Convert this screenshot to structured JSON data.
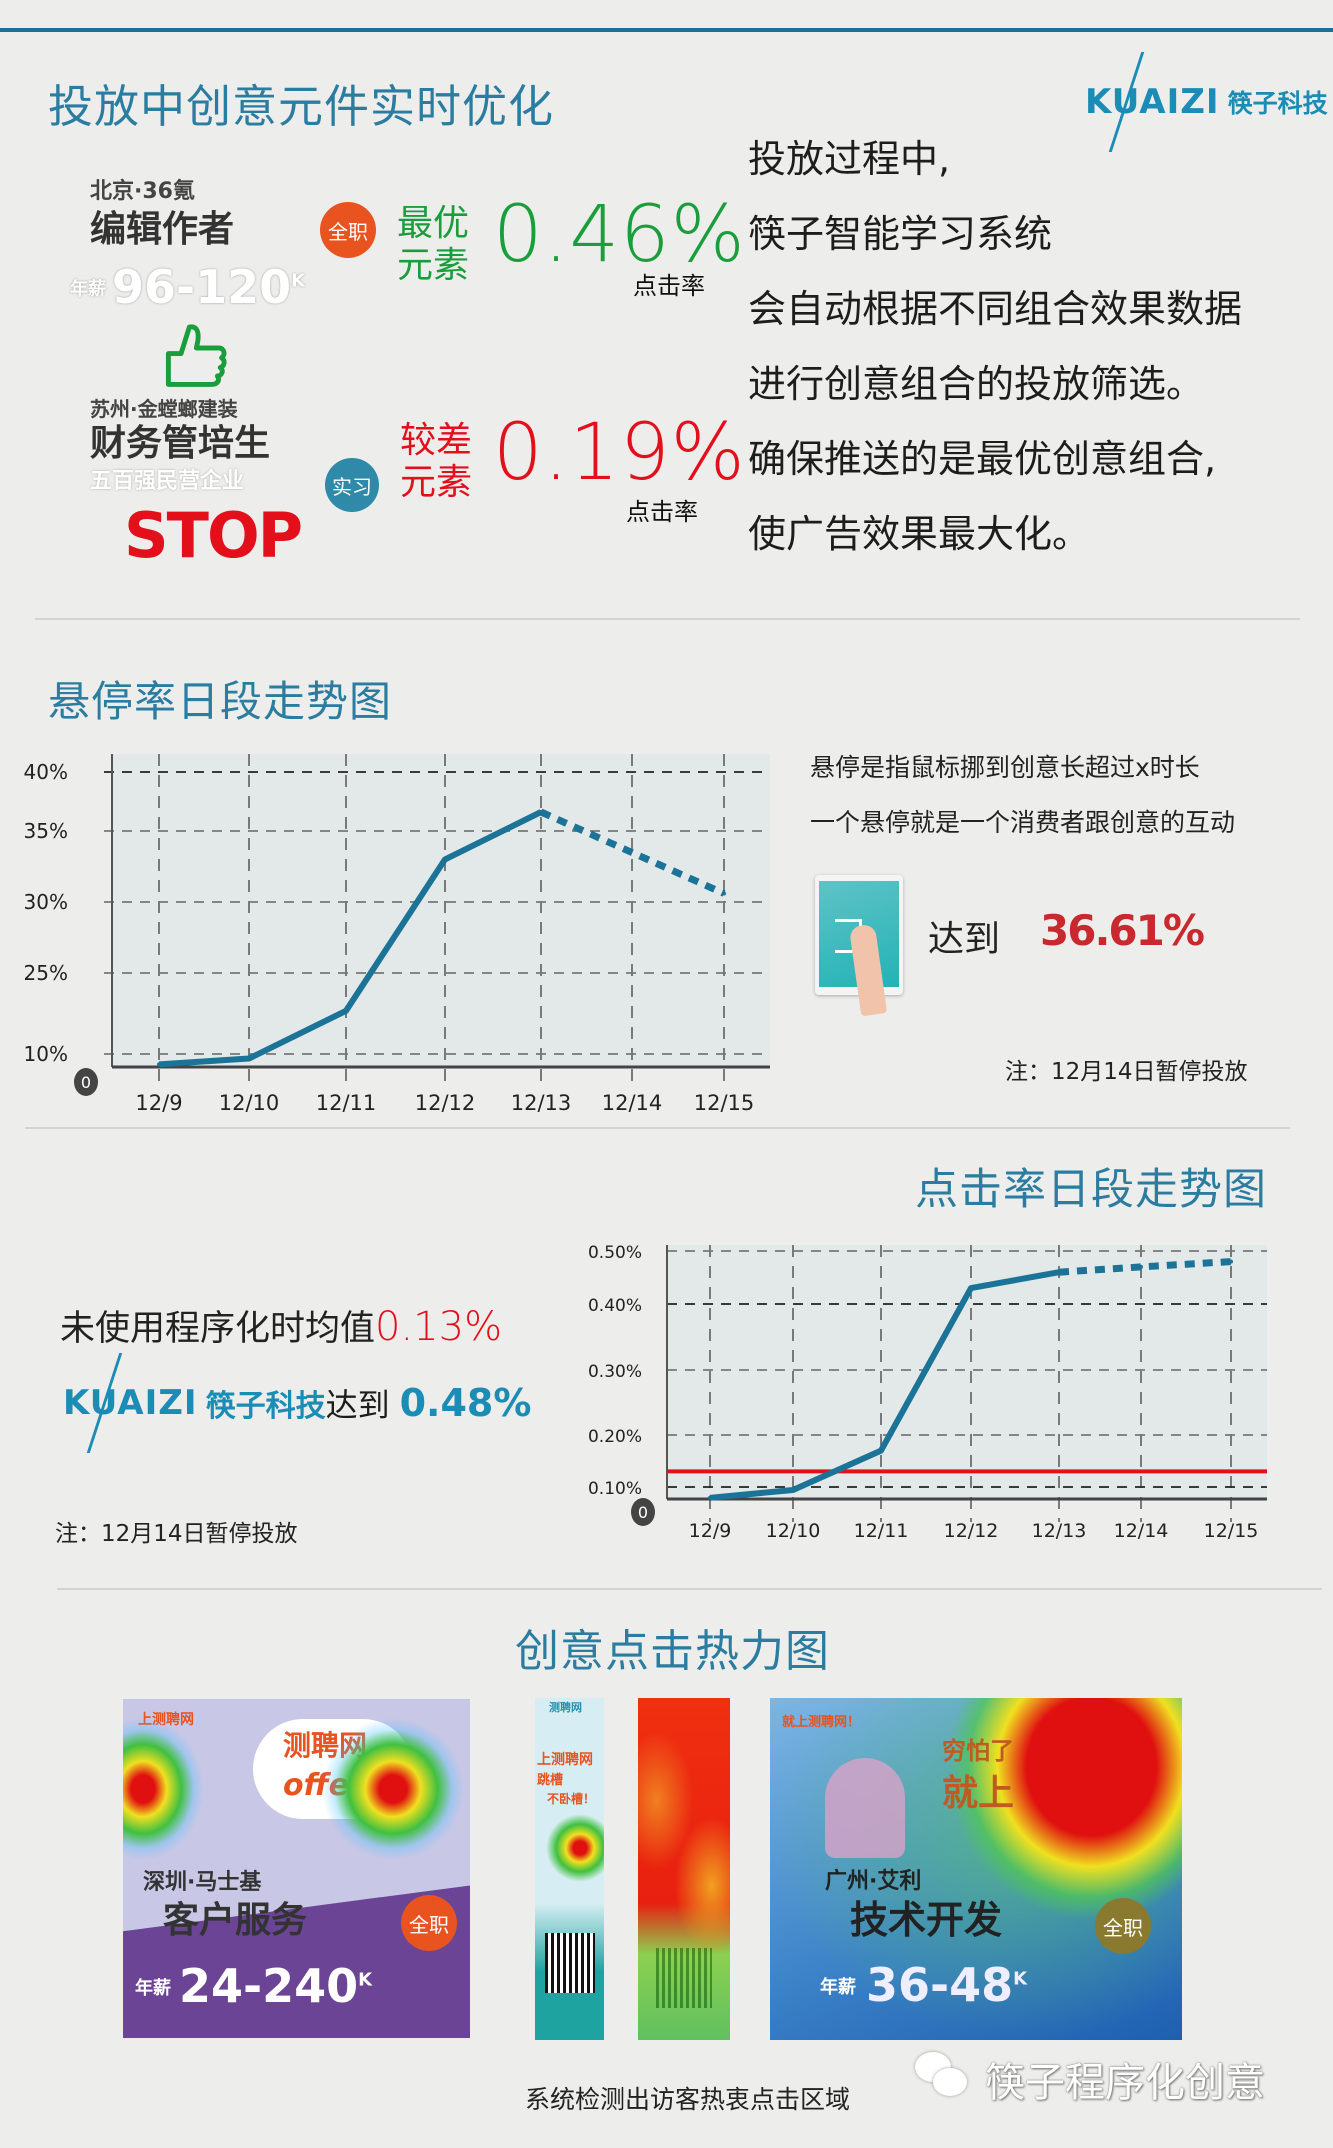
{
  "section1": {
    "title": "投放中创意元件实时优化",
    "logo": {
      "latin": "KUAIZI",
      "cn": "筷子科技"
    },
    "paragraph": [
      "投放过程中,",
      "筷子智能学习系统",
      "会自动根据不同组合效果数据",
      "进行创意组合的投放筛选。",
      "确保推送的是最优创意组合,",
      "使广告效果最大化。"
    ],
    "best": {
      "label": [
        "最优",
        "元素"
      ],
      "value": "0.46%",
      "sub": "点击率",
      "color": "#1a9e3c"
    },
    "worse": {
      "label": [
        "较差",
        "元素"
      ],
      "value": "0.19%",
      "sub": "点击率",
      "color": "#e3101c"
    },
    "ad_good": {
      "location": "北京·36氪",
      "job": "编辑作者",
      "salary_prefix": "年薪",
      "salary": "96-120",
      "unit": "K",
      "badge": "全职",
      "icon": "thumbs-up-icon"
    },
    "ad_bad": {
      "location": "苏州·金螳螂建装",
      "job": "财务管培生",
      "faint": "五百强民营企业",
      "badge": "实习",
      "stop": "STOP"
    }
  },
  "chart_hover": {
    "title": "悬停率日段走势图",
    "desc": [
      "悬停是指鼠标挪到创意长超过x时长",
      "一个悬停就是一个消费者跟创意的互动"
    ],
    "reach_label": "达到",
    "reach_value": "36.61%",
    "note": "注：12月14日暂停投放",
    "icon": "tablet-touch-icon"
  },
  "chart_click": {
    "title": "点击率日段走势图",
    "baseline_text": "未使用程序化时均值",
    "baseline_value": "0.13%",
    "logo": {
      "latin": "KUAIZI",
      "cn": "筷子科技"
    },
    "reach_label": "达到",
    "reach_value": "0.48%",
    "note": "注：12月14日暂停投放"
  },
  "chart_data": [
    {
      "type": "line",
      "title": "悬停率日段走势图",
      "categories": [
        "12/9",
        "12/10",
        "12/11",
        "12/12",
        "12/13",
        "12/14",
        "12/15"
      ],
      "yticks": [
        "0",
        "10%",
        "25%",
        "30%",
        "35%",
        "40%"
      ],
      "ytick_values": [
        0,
        10,
        25,
        30,
        35,
        40
      ],
      "series": [
        {
          "values": [
            2,
            6.5,
            18,
            33,
            36.61,
            null,
            30.6
          ],
          "dashed_from": "12/13",
          "color": "#1b7398"
        }
      ],
      "grid": true
    },
    {
      "type": "line",
      "title": "点击率日段走势图",
      "categories": [
        "12/9",
        "12/10",
        "12/11",
        "12/12",
        "12/13",
        "12/14",
        "12/15"
      ],
      "yticks": [
        "0",
        "0.10%",
        "0.20%",
        "0.30%",
        "0.40%",
        "0.50%"
      ],
      "ytick_values": [
        0,
        0.1,
        0.2,
        0.3,
        0.4,
        0.5
      ],
      "series": [
        {
          "values": [
            0.01,
            0.075,
            0.17,
            0.43,
            0.46,
            0.47,
            0.48
          ],
          "dashed_from": "12/13",
          "color": "#1b7398"
        }
      ],
      "reference_line": {
        "value": 0.13,
        "color": "#e3101c"
      },
      "grid": true
    }
  ],
  "heatmap": {
    "title": "创意点击热力图",
    "caption": "系统检测出访客热衷点击区域",
    "watermark": "筷子程序化创意",
    "ad1": {
      "brand": "上测聘网",
      "bubble": "测聘网",
      "bubble2": "offer",
      "location": "深圳·马士基",
      "job": "客户服务",
      "salary_prefix": "年薪",
      "salary": "24-240",
      "unit": "K",
      "badge": "全职"
    },
    "ad2": {
      "brand": "测聘网",
      "line1": "上测聘网",
      "line2": "跳槽",
      "line3": "不卧槽！"
    },
    "ad4": {
      "brand": "就上测聘网！",
      "bubble": "穷怕了",
      "bubble2": "就上",
      "location": "广州·艾利",
      "job": "技术开发",
      "salary_prefix": "年薪",
      "salary": "36-48",
      "unit": "K",
      "badge": "全职"
    }
  }
}
